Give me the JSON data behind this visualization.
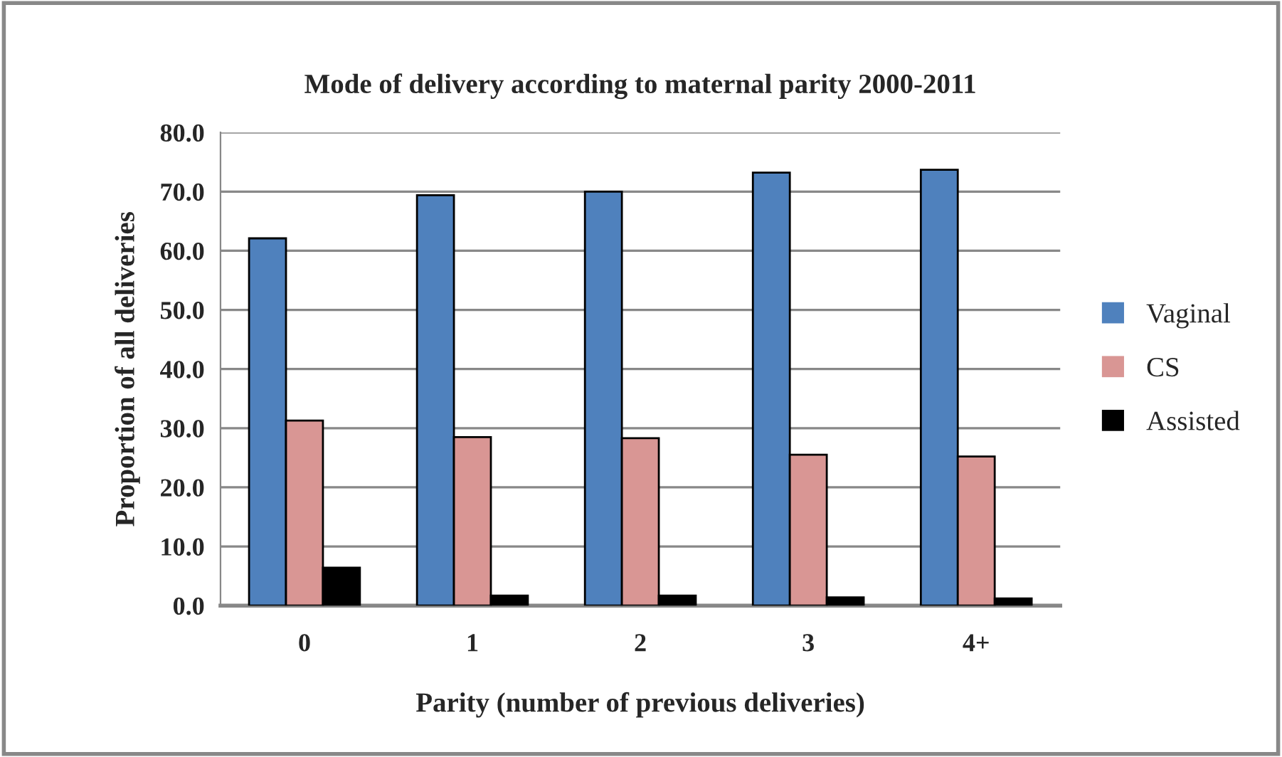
{
  "chart_data": {
    "type": "bar",
    "title": "Mode of delivery according to maternal parity 2000-2011",
    "xlabel": "Parity (number of previous deliveries)",
    "ylabel": "Proportion of all deliveries",
    "categories": [
      "0",
      "1",
      "2",
      "3",
      "4+"
    ],
    "series": [
      {
        "name": "Vaginal",
        "color": "#4f81bd",
        "values": [
          62.1,
          69.4,
          70.0,
          73.2,
          73.7
        ]
      },
      {
        "name": "CS",
        "color": "#d99694",
        "values": [
          31.3,
          28.5,
          28.3,
          25.5,
          25.2
        ]
      },
      {
        "name": "Assisted",
        "color": "#000000",
        "values": [
          6.4,
          1.7,
          1.7,
          1.4,
          1.2
        ]
      }
    ],
    "ylim": [
      0,
      80
    ],
    "yticks": [
      {
        "value": 0,
        "label": "0.0"
      },
      {
        "value": 10,
        "label": "10.0"
      },
      {
        "value": 20,
        "label": "20.0"
      },
      {
        "value": 30,
        "label": "30.0"
      },
      {
        "value": 40,
        "label": "40.0"
      },
      {
        "value": 50,
        "label": "50.0"
      },
      {
        "value": 60,
        "label": "60.0"
      },
      {
        "value": 70,
        "label": "70.0"
      },
      {
        "value": 80,
        "label": "80.0"
      }
    ],
    "grid": "y",
    "legend": "right"
  }
}
